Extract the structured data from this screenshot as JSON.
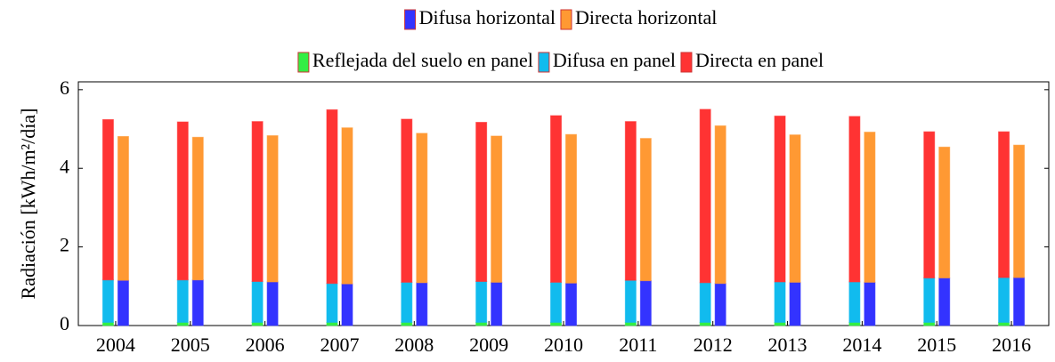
{
  "chart_data": {
    "type": "stacked-grouped-bar",
    "y_label": "Radiación [kWh/m²/día]",
    "categories": [
      "2004",
      "2005",
      "2006",
      "2007",
      "2008",
      "2009",
      "2010",
      "2011",
      "2012",
      "2013",
      "2014",
      "2015",
      "2016"
    ],
    "series": [
      {
        "name": "Difusa horizontal",
        "color": "#3333ff",
        "stack": 1,
        "values": [
          1.15,
          1.16,
          1.11,
          1.06,
          1.09,
          1.1,
          1.08,
          1.14,
          1.07,
          1.1,
          1.1,
          1.21,
          1.22
        ]
      },
      {
        "name": "Directa horizontal",
        "color": "#ff9933",
        "stack": 1,
        "values": [
          3.66,
          3.63,
          3.72,
          3.97,
          3.8,
          3.72,
          3.78,
          3.62,
          4.01,
          3.75,
          3.82,
          3.33,
          3.37
        ]
      },
      {
        "name": "Reflejada del suelo en panel",
        "color": "#33ee44",
        "stack": 0,
        "values": [
          0.08,
          0.08,
          0.08,
          0.08,
          0.08,
          0.08,
          0.08,
          0.08,
          0.08,
          0.08,
          0.08,
          0.08,
          0.08
        ]
      },
      {
        "name": "Difusa en panel",
        "color": "#11bbee",
        "stack": 0,
        "values": [
          1.08,
          1.08,
          1.04,
          0.99,
          1.02,
          1.04,
          1.02,
          1.07,
          1.01,
          1.03,
          1.03,
          1.13,
          1.14
        ]
      },
      {
        "name": "Directa en panel",
        "color": "#ff3333",
        "stack": 0,
        "values": [
          4.08,
          4.02,
          4.07,
          4.42,
          4.15,
          4.05,
          4.24,
          4.04,
          4.41,
          4.22,
          4.21,
          3.72,
          3.71
        ]
      }
    ],
    "ylim": [
      0,
      6.2
    ],
    "yticks": [
      0,
      2,
      4,
      6
    ],
    "grid": false
  }
}
